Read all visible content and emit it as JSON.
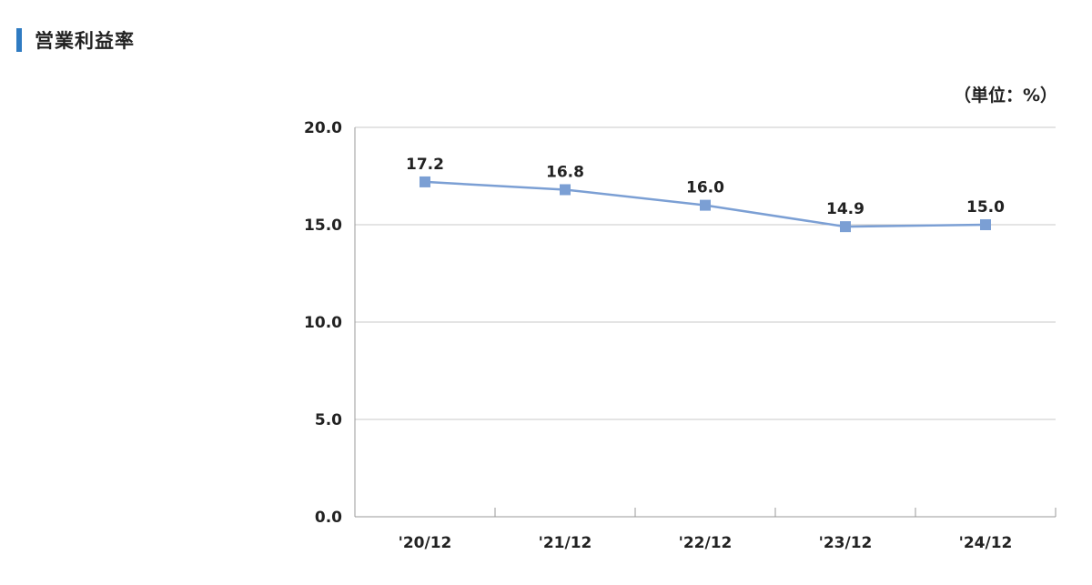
{
  "header": {
    "title": "営業利益率",
    "accent_color": "#2f7bc2"
  },
  "unit_label": "（単位：%）",
  "chart_data": {
    "type": "line",
    "categories": [
      "'20/12",
      "'21/12",
      "'22/12",
      "'23/12",
      "'24/12"
    ],
    "series": [
      {
        "values": [
          17.2,
          16.8,
          16.0,
          14.9,
          15.0
        ],
        "color": "#7b9fd4"
      }
    ],
    "data_labels": [
      "17.2",
      "16.8",
      "16.0",
      "14.9",
      "15.0"
    ],
    "y_ticks": [
      0,
      5,
      10,
      15,
      20
    ],
    "y_tick_labels": [
      "0.0",
      "5.0",
      "10.0",
      "15.0",
      "20.0"
    ],
    "ylim": [
      0,
      20
    ],
    "grid": true,
    "legend": "none"
  }
}
